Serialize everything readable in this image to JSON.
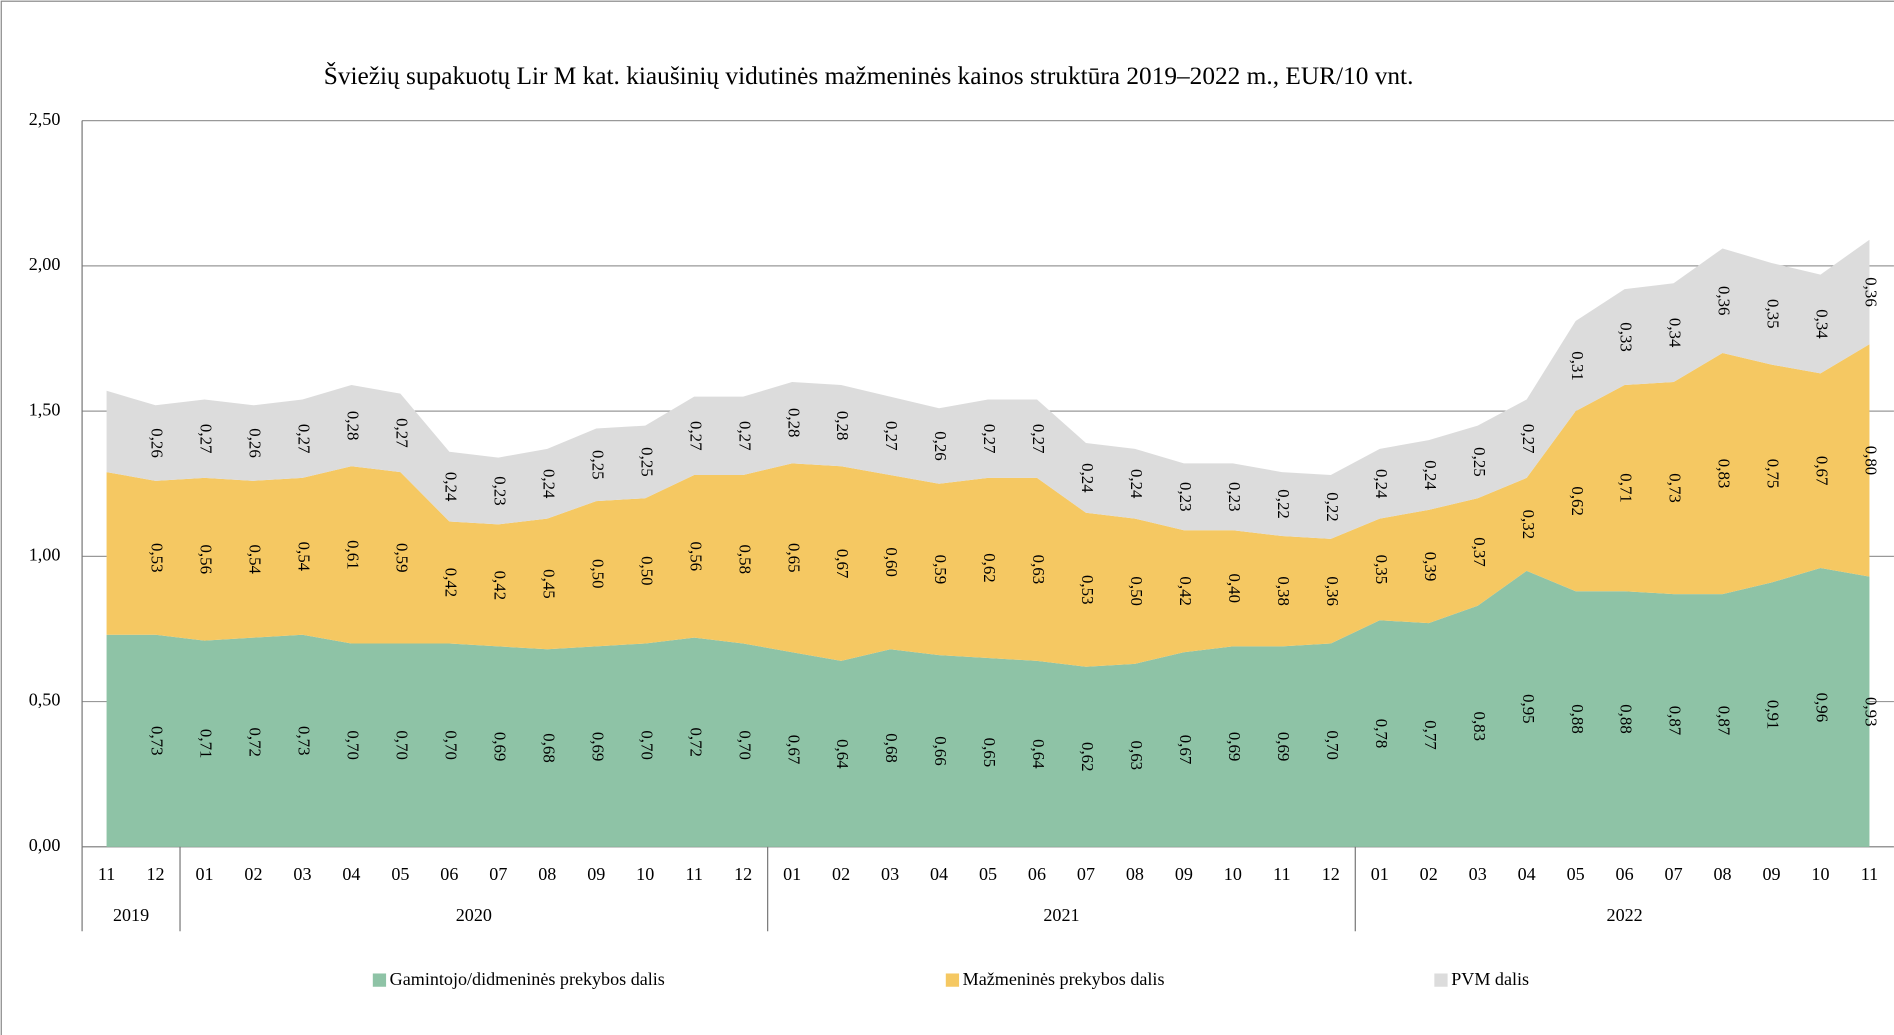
{
  "chart_data": {
    "type": "stacked_area",
    "title": "Šviežių supakuotų Lir M kat. kiaušinių vidutinės mažmeninės kainos struktūra 2019–2022 m., EUR/10 vnt.",
    "categories": [
      "11",
      "12",
      "01",
      "02",
      "03",
      "04",
      "05",
      "06",
      "07",
      "08",
      "09",
      "10",
      "11",
      "12",
      "01",
      "02",
      "03",
      "04",
      "05",
      "06",
      "07",
      "08",
      "09",
      "10",
      "11",
      "12",
      "01",
      "02",
      "03",
      "04",
      "05",
      "06",
      "07",
      "08",
      "09",
      "10",
      "11"
    ],
    "category_groups": [
      {
        "label": "2019",
        "size": 2
      },
      {
        "label": "2020",
        "size": 12
      },
      {
        "label": "2021",
        "size": 12
      },
      {
        "label": "2022",
        "size": 11
      }
    ],
    "series": [
      {
        "name": "Gamintojo/didmeninės prekybos dalis",
        "color": "#8ec3a6",
        "values": [
          0.73,
          0.73,
          0.71,
          0.72,
          0.73,
          0.7,
          0.7,
          0.7,
          0.69,
          0.68,
          0.69,
          0.7,
          0.72,
          0.7,
          0.67,
          0.64,
          0.68,
          0.66,
          0.65,
          0.64,
          0.62,
          0.63,
          0.67,
          0.69,
          0.69,
          0.7,
          0.78,
          0.77,
          0.83,
          0.95,
          0.88,
          0.88,
          0.87,
          0.87,
          0.91,
          0.96,
          0.93
        ],
        "value_labels": [
          null,
          "0,73",
          "0,71",
          "0,72",
          "0,73",
          "0,70",
          "0,70",
          "0,70",
          "0,69",
          "0,68",
          "0,69",
          "0,70",
          "0,72",
          "0,70",
          "0,67",
          "0,64",
          "0,68",
          "0,66",
          "0,65",
          "0,64",
          "0,62",
          "0,63",
          "0,67",
          "0,69",
          "0,69",
          "0,70",
          "0,78",
          "0,77",
          "0,83",
          "0,95",
          "0,88",
          "0,88",
          "0,87",
          "0,87",
          "0,91",
          "0,96",
          "0,93"
        ]
      },
      {
        "name": "Mažmeninės prekybos dalis",
        "color": "#f5c862",
        "values": [
          0.56,
          0.53,
          0.56,
          0.54,
          0.54,
          0.61,
          0.59,
          0.42,
          0.42,
          0.45,
          0.5,
          0.5,
          0.56,
          0.58,
          0.65,
          0.67,
          0.6,
          0.59,
          0.62,
          0.63,
          0.53,
          0.5,
          0.42,
          0.4,
          0.38,
          0.36,
          0.35,
          0.39,
          0.37,
          0.32,
          0.62,
          0.71,
          0.73,
          0.83,
          0.75,
          0.67,
          0.8
        ],
        "value_labels": [
          null,
          "0,53",
          "0,56",
          "0,54",
          "0,54",
          "0,61",
          "0,59",
          "0,42",
          "0,42",
          "0,45",
          "0,50",
          "0,50",
          "0,56",
          "0,58",
          "0,65",
          "0,67",
          "0,60",
          "0,59",
          "0,62",
          "0,63",
          "0,53",
          "0,50",
          "0,42",
          "0,40",
          "0,38",
          "0,36",
          "0,35",
          "0,39",
          "0,37",
          "0,32",
          "0,62",
          "0,71",
          "0,73",
          "0,83",
          "0,75",
          "0,67",
          "0,80"
        ]
      },
      {
        "name": "PVM dalis",
        "color": "#dcdcdc",
        "values": [
          0.28,
          0.26,
          0.27,
          0.26,
          0.27,
          0.28,
          0.27,
          0.24,
          0.23,
          0.24,
          0.25,
          0.25,
          0.27,
          0.27,
          0.28,
          0.28,
          0.27,
          0.26,
          0.27,
          0.27,
          0.24,
          0.24,
          0.23,
          0.23,
          0.22,
          0.22,
          0.24,
          0.24,
          0.25,
          0.27,
          0.31,
          0.33,
          0.34,
          0.36,
          0.35,
          0.34,
          0.36
        ],
        "value_labels": [
          null,
          "0,26",
          "0,27",
          "0,26",
          "0,27",
          "0,28",
          "0,27",
          "0,24",
          "0,23",
          "0,24",
          "0,25",
          "0,25",
          "0,27",
          "0,27",
          "0,28",
          "0,28",
          "0,27",
          "0,26",
          "0,27",
          "0,27",
          "0,24",
          "0,24",
          "0,23",
          "0,23",
          "0,22",
          "0,22",
          "0,24",
          "0,24",
          "0,25",
          "0,27",
          "0,31",
          "0,33",
          "0,34",
          "0,36",
          "0,35",
          "0,34",
          "0,36"
        ]
      }
    ],
    "ylim": [
      0,
      2.5
    ],
    "yticks": [
      {
        "value": 0,
        "label": "0,00"
      },
      {
        "value": 0.5,
        "label": "0,50"
      },
      {
        "value": 1,
        "label": "1,00"
      },
      {
        "value": 1.5,
        "label": "1,50"
      },
      {
        "value": 2,
        "label": "2,00"
      },
      {
        "value": 2.5,
        "label": "2,50"
      }
    ],
    "grid": true,
    "legend": "bottom"
  }
}
